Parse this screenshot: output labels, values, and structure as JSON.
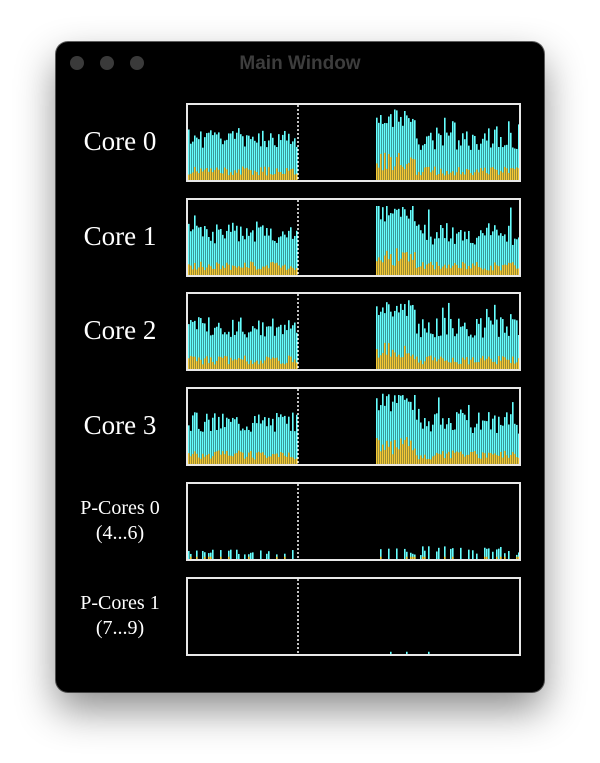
{
  "window": {
    "title": "Main Window"
  },
  "colors": {
    "total": "#66ffff",
    "user": "#f3c937",
    "marker": "#ffffff",
    "background": "#000000"
  },
  "rows": [
    {
      "label": "Core  0",
      "label2": "",
      "level": "high",
      "seed": 11
    },
    {
      "label": "Core  1",
      "label2": "",
      "level": "high",
      "seed": 23
    },
    {
      "label": "Core  2",
      "label2": "",
      "level": "high",
      "seed": 37
    },
    {
      "label": "Core  3",
      "label2": "",
      "level": "high",
      "seed": 51
    },
    {
      "label": "P-Cores 0",
      "label2": "(4...6)",
      "level": "low",
      "seed": 67
    },
    {
      "label": "P-Cores 1",
      "label2": "(7...9)",
      "level": "idle",
      "seed": 83
    }
  ]
}
